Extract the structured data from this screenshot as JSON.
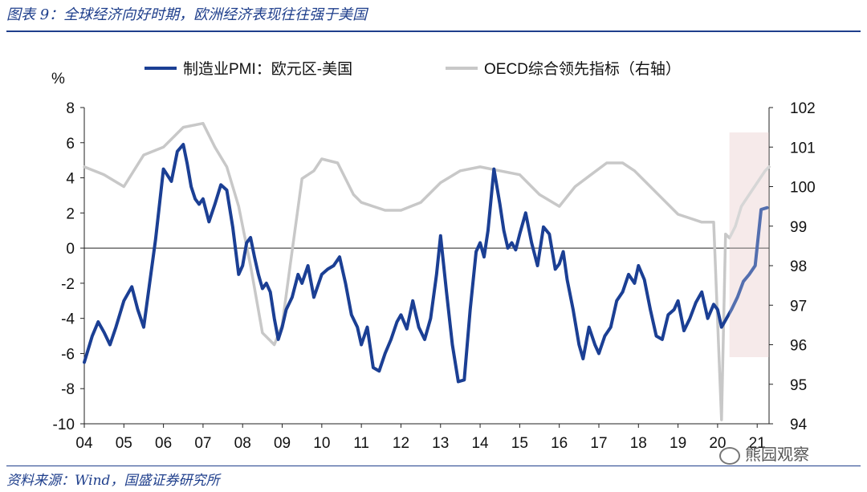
{
  "header": {
    "title": "图表 9：全球经济向好时期，欧洲经济表现往往强于美国"
  },
  "footer": {
    "source": "资料来源：Wind，国盛证券研究所"
  },
  "watermark": {
    "text": "熊园观察"
  },
  "colors": {
    "pmi": "#1b3f94",
    "oecd": "#c8c8c8",
    "rule": "#1f3f8c",
    "highlight": "#f3e3e3"
  },
  "chart_data": {
    "type": "line",
    "title": "",
    "left_unit": "%",
    "legend": [
      {
        "name": "制造业PMI：欧元区-美国",
        "axis": "left",
        "color": "#1b3f94"
      },
      {
        "name": "OECD综合领先指标（右轴）",
        "axis": "right",
        "color": "#c8c8c8"
      }
    ],
    "x_ticks": [
      "04",
      "05",
      "06",
      "07",
      "08",
      "09",
      "10",
      "11",
      "12",
      "13",
      "14",
      "15",
      "16",
      "17",
      "18",
      "19",
      "20",
      "21"
    ],
    "x_range": [
      2004,
      2021.3
    ],
    "y_left": {
      "range": [
        -10,
        8
      ],
      "ticks": [
        "8",
        "6",
        "4",
        "2",
        "0",
        "-2",
        "-4",
        "-6",
        "-8",
        "-10"
      ]
    },
    "y_right": {
      "range": [
        94,
        102
      ],
      "ticks": [
        "102",
        "101",
        "100",
        "99",
        "98",
        "97",
        "96",
        "95",
        "94"
      ]
    },
    "highlight_range": [
      2020.3,
      2021.3
    ],
    "series": [
      {
        "name": "制造业PMI：欧元区-美国",
        "axis": "left",
        "x": [
          2004.0,
          2004.2,
          2004.35,
          2004.5,
          2004.65,
          2004.8,
          2005.0,
          2005.2,
          2005.35,
          2005.5,
          2005.65,
          2005.8,
          2006.0,
          2006.2,
          2006.35,
          2006.5,
          2006.6,
          2006.7,
          2006.8,
          2006.9,
          2007.0,
          2007.15,
          2007.3,
          2007.45,
          2007.6,
          2007.75,
          2007.9,
          2008.0,
          2008.1,
          2008.2,
          2008.3,
          2008.4,
          2008.5,
          2008.6,
          2008.7,
          2008.8,
          2008.9,
          2009.0,
          2009.1,
          2009.25,
          2009.4,
          2009.5,
          2009.65,
          2009.8,
          2010.0,
          2010.15,
          2010.3,
          2010.45,
          2010.6,
          2010.75,
          2010.9,
          2011.0,
          2011.15,
          2011.3,
          2011.45,
          2011.6,
          2011.75,
          2011.9,
          2012.0,
          2012.15,
          2012.3,
          2012.45,
          2012.6,
          2012.75,
          2012.9,
          2013.0,
          2013.15,
          2013.3,
          2013.45,
          2013.6,
          2013.75,
          2013.9,
          2014.0,
          2014.1,
          2014.2,
          2014.35,
          2014.5,
          2014.6,
          2014.7,
          2014.8,
          2014.9,
          2015.0,
          2015.15,
          2015.3,
          2015.45,
          2015.6,
          2015.75,
          2015.9,
          2016.0,
          2016.1,
          2016.2,
          2016.35,
          2016.5,
          2016.6,
          2016.75,
          2016.9,
          2017.0,
          2017.15,
          2017.3,
          2017.45,
          2017.6,
          2017.75,
          2017.9,
          2018.0,
          2018.15,
          2018.3,
          2018.45,
          2018.6,
          2018.75,
          2018.9,
          2019.0,
          2019.15,
          2019.3,
          2019.45,
          2019.6,
          2019.75,
          2019.9,
          2020.0,
          2020.1,
          2020.2,
          2020.35,
          2020.5,
          2020.65,
          2020.8,
          2020.95,
          2021.1,
          2021.25
        ],
        "values": [
          -6.5,
          -5.0,
          -4.2,
          -4.8,
          -5.5,
          -4.5,
          -3.0,
          -2.2,
          -3.5,
          -4.5,
          -2.0,
          0.5,
          4.5,
          3.8,
          5.5,
          5.9,
          4.8,
          3.5,
          2.8,
          2.5,
          2.8,
          1.5,
          2.5,
          3.6,
          3.3,
          1.2,
          -1.5,
          -1.0,
          0.3,
          0.6,
          -0.5,
          -1.5,
          -2.3,
          -2.0,
          -2.5,
          -4.0,
          -5.2,
          -4.5,
          -3.5,
          -2.8,
          -1.5,
          -2.0,
          -1.0,
          -2.8,
          -1.5,
          -1.2,
          -1.0,
          -0.5,
          -2.0,
          -3.8,
          -4.5,
          -5.5,
          -4.5,
          -6.8,
          -7.0,
          -6.0,
          -5.2,
          -4.2,
          -3.8,
          -4.6,
          -3.0,
          -4.5,
          -5.2,
          -4.0,
          -1.5,
          0.7,
          -2.5,
          -5.5,
          -7.6,
          -7.5,
          -3.5,
          -0.2,
          0.3,
          -0.5,
          1.0,
          4.5,
          2.5,
          1.0,
          0.0,
          0.3,
          -0.1,
          0.8,
          2.0,
          0.3,
          -1.0,
          1.2,
          0.8,
          -1.2,
          -0.9,
          -0.2,
          -1.8,
          -3.5,
          -5.5,
          -6.3,
          -4.5,
          -5.5,
          -6.0,
          -5.0,
          -4.5,
          -3.0,
          -2.5,
          -1.5,
          -2.0,
          -1.0,
          -1.8,
          -3.5,
          -5.0,
          -5.2,
          -3.8,
          -3.5,
          -3.0,
          -4.7,
          -4.0,
          -3.1,
          -2.5,
          -4.0,
          -3.2,
          -3.5,
          -4.5,
          -4.1,
          -3.5,
          -2.8,
          -1.9,
          -1.5,
          -1.0,
          2.2,
          2.3
        ]
      },
      {
        "name": "OECD综合领先指标（右轴）",
        "axis": "right",
        "x": [
          2004.0,
          2004.5,
          2005.0,
          2005.5,
          2006.0,
          2006.5,
          2007.0,
          2007.3,
          2007.6,
          2007.9,
          2008.2,
          2008.5,
          2008.8,
          2009.0,
          2009.2,
          2009.5,
          2009.8,
          2010.0,
          2010.4,
          2010.8,
          2011.0,
          2011.3,
          2011.6,
          2012.0,
          2012.5,
          2013.0,
          2013.5,
          2014.0,
          2014.5,
          2015.0,
          2015.5,
          2016.0,
          2016.4,
          2016.8,
          2017.2,
          2017.6,
          2017.9,
          2018.3,
          2018.6,
          2019.0,
          2019.3,
          2019.6,
          2019.9,
          2020.1,
          2020.2,
          2020.3,
          2020.45,
          2020.6,
          2020.8,
          2021.0,
          2021.2,
          2021.3
        ],
        "values": [
          100.5,
          100.3,
          100.0,
          100.8,
          101.0,
          101.5,
          101.6,
          101.0,
          100.5,
          99.5,
          98.0,
          96.3,
          96.0,
          96.5,
          98.0,
          100.2,
          100.4,
          100.7,
          100.6,
          99.8,
          99.6,
          99.5,
          99.4,
          99.4,
          99.6,
          100.1,
          100.4,
          100.5,
          100.4,
          100.3,
          99.8,
          99.5,
          100.0,
          100.3,
          100.6,
          100.6,
          100.4,
          100.0,
          99.7,
          99.3,
          99.2,
          99.1,
          99.1,
          94.1,
          98.8,
          98.7,
          99.0,
          99.5,
          99.8,
          100.1,
          100.4,
          100.5
        ]
      }
    ]
  }
}
